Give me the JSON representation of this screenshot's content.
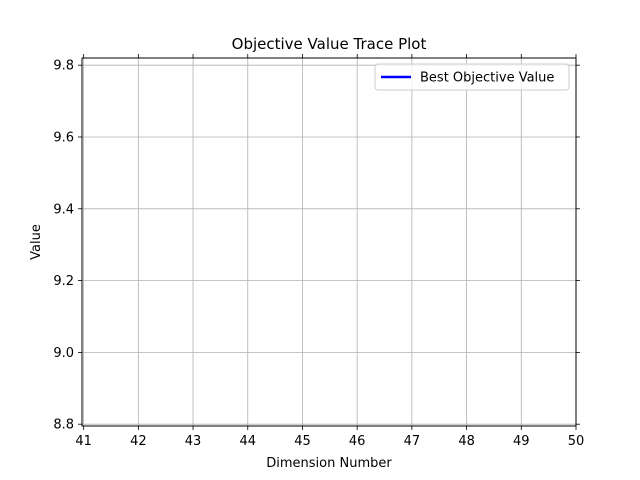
{
  "chart_data": {
    "type": "line",
    "title": "Objective Value Trace Plot",
    "xlabel": "Dimension Number",
    "ylabel": "Value",
    "xlim": [
      40.97,
      50.0
    ],
    "ylim": [
      8.795,
      9.82
    ],
    "xticks": [
      41,
      42,
      43,
      44,
      45,
      46,
      47,
      48,
      49,
      50
    ],
    "yticks": [
      8.8,
      9.0,
      9.2,
      9.4,
      9.6,
      9.8
    ],
    "ytick_labels": [
      "8.8",
      "9.0",
      "9.2",
      "9.4",
      "9.6",
      "9.8"
    ],
    "grid": true,
    "legend_position": "upper right",
    "series": [
      {
        "name": "Best Objective Value",
        "color": "#0000ff",
        "x": [],
        "y": []
      }
    ]
  }
}
